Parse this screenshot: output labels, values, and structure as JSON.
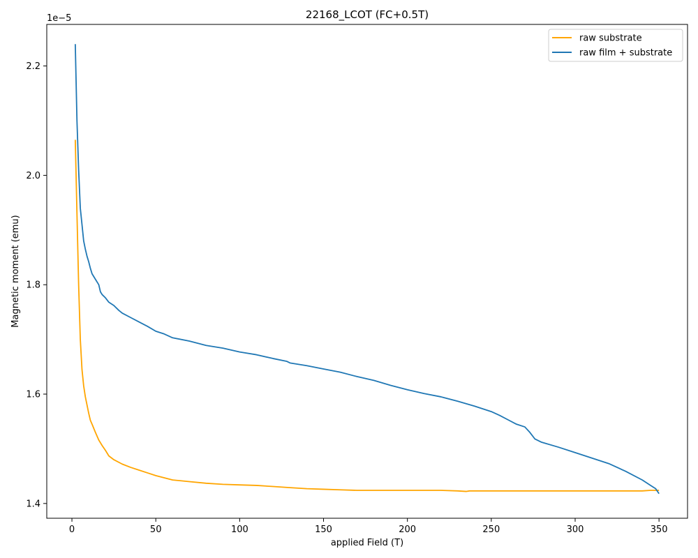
{
  "chart_data": {
    "type": "line",
    "title": "22168_LCOT (FC+0.5T)",
    "xlabel": "applied Field (T)",
    "ylabel": "Magnetic moment (emu)",
    "y_offset_text": "1e−5",
    "xlim": [
      -15,
      367
    ],
    "ylim": [
      1.373,
      2.276
    ],
    "x_ticks": [
      0,
      50,
      100,
      150,
      200,
      250,
      300,
      350
    ],
    "x_tick_labels": [
      "0",
      "50",
      "100",
      "150",
      "200",
      "250",
      "300",
      "350"
    ],
    "y_ticks": [
      1.4,
      1.6,
      1.8,
      2.0,
      2.2
    ],
    "y_tick_labels": [
      "1.4",
      "1.6",
      "1.8",
      "2.0",
      "2.2"
    ],
    "grid": false,
    "legend_position": "top-right",
    "series": [
      {
        "name": "raw substrate",
        "color": "#ffa500",
        "x": [
          2,
          3,
          4,
          5,
          6,
          7,
          8,
          9,
          10,
          11,
          12,
          14,
          16,
          18,
          20,
          22,
          25,
          30,
          35,
          40,
          45,
          50,
          55,
          60,
          70,
          80,
          90,
          100,
          110,
          120,
          130,
          140,
          150,
          160,
          170,
          180,
          190,
          200,
          210,
          220,
          230,
          235,
          237,
          240,
          250,
          260,
          270,
          280,
          290,
          300,
          310,
          320,
          330,
          340,
          345,
          350
        ],
        "y": [
          2.065,
          1.93,
          1.8,
          1.7,
          1.645,
          1.615,
          1.595,
          1.58,
          1.565,
          1.552,
          1.545,
          1.53,
          1.516,
          1.506,
          1.497,
          1.487,
          1.48,
          1.472,
          1.466,
          1.461,
          1.456,
          1.451,
          1.447,
          1.443,
          1.44,
          1.437,
          1.435,
          1.434,
          1.433,
          1.431,
          1.429,
          1.427,
          1.426,
          1.425,
          1.424,
          1.424,
          1.424,
          1.424,
          1.424,
          1.424,
          1.423,
          1.422,
          1.423,
          1.423,
          1.423,
          1.423,
          1.423,
          1.423,
          1.423,
          1.423,
          1.423,
          1.423,
          1.423,
          1.423,
          1.424,
          1.424
        ]
      },
      {
        "name": "raw film + substrate",
        "color": "#1f77b4",
        "x": [
          2,
          3,
          4,
          5,
          6,
          7,
          8,
          9,
          10,
          11,
          12,
          14,
          16,
          17,
          18,
          20,
          22,
          25,
          28,
          30,
          35,
          40,
          45,
          50,
          55,
          60,
          70,
          80,
          90,
          100,
          110,
          120,
          128,
          130,
          140,
          150,
          160,
          170,
          180,
          190,
          200,
          210,
          220,
          230,
          240,
          250,
          255,
          260,
          265,
          270,
          273,
          276,
          280,
          290,
          300,
          310,
          320,
          330,
          340,
          345,
          348,
          350
        ],
        "y": [
          2.24,
          2.1,
          2.01,
          1.94,
          1.91,
          1.88,
          1.865,
          1.852,
          1.842,
          1.83,
          1.82,
          1.81,
          1.8,
          1.787,
          1.782,
          1.776,
          1.768,
          1.762,
          1.753,
          1.748,
          1.74,
          1.732,
          1.724,
          1.715,
          1.71,
          1.703,
          1.697,
          1.689,
          1.684,
          1.677,
          1.672,
          1.665,
          1.66,
          1.657,
          1.652,
          1.646,
          1.64,
          1.632,
          1.625,
          1.616,
          1.608,
          1.601,
          1.595,
          1.587,
          1.578,
          1.568,
          1.561,
          1.553,
          1.545,
          1.54,
          1.53,
          1.518,
          1.512,
          1.503,
          1.493,
          1.483,
          1.473,
          1.459,
          1.443,
          1.433,
          1.427,
          1.418
        ]
      }
    ]
  }
}
